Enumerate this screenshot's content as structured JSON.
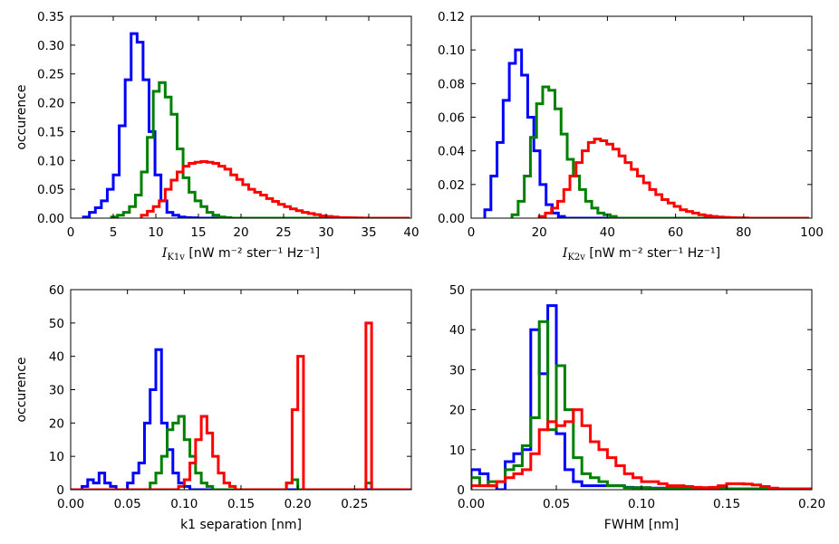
{
  "chart_data": [
    {
      "type": "step-histogram",
      "xlabel": {
        "symbol": "I",
        "subscript": "K1v",
        "unit": " [nW m⁻² ster⁻¹ Hz⁻¹]"
      },
      "ylabel": "occurence",
      "xlim": [
        0,
        40
      ],
      "ylim": [
        0,
        0.35
      ],
      "xticks": [
        0,
        5,
        10,
        15,
        20,
        25,
        30,
        35,
        40
      ],
      "yticks": [
        0.0,
        0.05,
        0.1,
        0.15,
        0.2,
        0.25,
        0.3,
        0.35
      ],
      "ytick_decimals": 2,
      "series": [
        {
          "name": "blue",
          "color": "#0000ff",
          "edges_start": 1.5,
          "bin_width": 0.7,
          "values": [
            0.002,
            0.01,
            0.018,
            0.03,
            0.05,
            0.075,
            0.16,
            0.24,
            0.32,
            0.305,
            0.24,
            0.15,
            0.075,
            0.03,
            0.01,
            0.005,
            0.002,
            0.001,
            0.0005,
            0.0,
            0.0,
            0.0,
            0.0,
            0.0,
            0.0,
            0.0,
            0.0,
            0.0,
            0.0,
            0.0,
            0.0,
            0.0,
            0.0,
            0.0,
            0.0,
            0.0,
            0.0,
            0.0,
            0.0,
            0.0,
            0.0,
            0.0,
            0.0,
            0.0,
            0.0,
            0.0,
            0.0,
            0.0,
            0.0,
            0.0,
            0.0,
            0.0,
            0.0
          ]
        },
        {
          "name": "green",
          "color": "#008000",
          "edges_start": 4.8,
          "bin_width": 0.7,
          "values": [
            0.002,
            0.005,
            0.01,
            0.02,
            0.04,
            0.08,
            0.14,
            0.22,
            0.235,
            0.21,
            0.18,
            0.12,
            0.07,
            0.045,
            0.03,
            0.02,
            0.01,
            0.005,
            0.002,
            0.001,
            0.0,
            0.0,
            0.0,
            0.0,
            0.0,
            0.0,
            0.0,
            0.0,
            0.0,
            0.0,
            0.0,
            0.0,
            0.0,
            0.0,
            0.0,
            0.0,
            0.0,
            0.0,
            0.0,
            0.0,
            0.0,
            0.0,
            0.0,
            0.0,
            0.0,
            0.0,
            0.0,
            0.0
          ]
        },
        {
          "name": "red",
          "color": "#ff0000",
          "edges_start": 8.3,
          "bin_width": 0.7,
          "values": [
            0.005,
            0.012,
            0.02,
            0.03,
            0.05,
            0.066,
            0.08,
            0.09,
            0.095,
            0.097,
            0.098,
            0.097,
            0.095,
            0.09,
            0.085,
            0.075,
            0.067,
            0.058,
            0.05,
            0.045,
            0.04,
            0.034,
            0.029,
            0.024,
            0.02,
            0.016,
            0.013,
            0.01,
            0.008,
            0.006,
            0.004,
            0.003,
            0.002,
            0.001,
            0.0008,
            0.0005,
            0.0003,
            0.0002,
            0.0001,
            0.0,
            0.0,
            0.0,
            0.0,
            0.0,
            0.0
          ]
        }
      ]
    },
    {
      "type": "step-histogram",
      "xlabel": {
        "symbol": "I",
        "subscript": "K2v",
        "unit": " [nW m⁻² ster⁻¹ Hz⁻¹]"
      },
      "ylabel": "",
      "xlim": [
        0,
        100
      ],
      "ylim": [
        0,
        0.12
      ],
      "xticks": [
        0,
        20,
        40,
        60,
        80,
        100
      ],
      "yticks": [
        0.0,
        0.02,
        0.04,
        0.06,
        0.08,
        0.1,
        0.12
      ],
      "ytick_decimals": 2,
      "series": [
        {
          "name": "blue",
          "color": "#0000ff",
          "edges_start": 4.0,
          "bin_width": 1.8,
          "values": [
            0.005,
            0.025,
            0.045,
            0.07,
            0.092,
            0.1,
            0.085,
            0.06,
            0.04,
            0.02,
            0.008,
            0.003,
            0.001,
            0.0,
            0.0,
            0.0,
            0.0,
            0.0,
            0.0,
            0.0,
            0.0,
            0.0,
            0.0,
            0.0,
            0.0,
            0.0,
            0.0,
            0.0,
            0.0,
            0.0,
            0.0,
            0.0,
            0.0,
            0.0,
            0.0,
            0.0,
            0.0,
            0.0,
            0.0,
            0.0,
            0.0,
            0.0,
            0.0,
            0.0,
            0.0,
            0.0,
            0.0,
            0.0,
            0.0,
            0.0,
            0.0,
            0.0
          ]
        },
        {
          "name": "green",
          "color": "#008000",
          "edges_start": 12.0,
          "bin_width": 1.8,
          "values": [
            0.002,
            0.01,
            0.025,
            0.048,
            0.068,
            0.078,
            0.076,
            0.065,
            0.05,
            0.035,
            0.025,
            0.017,
            0.01,
            0.006,
            0.003,
            0.002,
            0.001,
            0.0,
            0.0,
            0.0,
            0.0,
            0.0,
            0.0,
            0.0,
            0.0,
            0.0,
            0.0,
            0.0,
            0.0,
            0.0,
            0.0,
            0.0,
            0.0,
            0.0,
            0.0,
            0.0,
            0.0,
            0.0,
            0.0,
            0.0,
            0.0,
            0.0,
            0.0,
            0.0,
            0.0,
            0.0,
            0.0
          ]
        },
        {
          "name": "red",
          "color": "#ff0000",
          "edges_start": 20.0,
          "bin_width": 1.8,
          "values": [
            0.001,
            0.003,
            0.006,
            0.01,
            0.017,
            0.025,
            0.033,
            0.04,
            0.045,
            0.047,
            0.046,
            0.044,
            0.041,
            0.037,
            0.033,
            0.029,
            0.025,
            0.021,
            0.017,
            0.014,
            0.011,
            0.009,
            0.007,
            0.005,
            0.004,
            0.003,
            0.002,
            0.0015,
            0.001,
            0.0007,
            0.0005,
            0.0003,
            0.0002,
            0.0001,
            0.0,
            0.0,
            0.0,
            0.0,
            0.0,
            0.0,
            0.0,
            0.0,
            0.0,
            0.0
          ]
        }
      ]
    },
    {
      "type": "step-histogram",
      "xlabel": {
        "symbol": "",
        "subscript": "",
        "unit": "k1 separation [nm]"
      },
      "ylabel": "occurence",
      "xlim": [
        0.0,
        0.3
      ],
      "ylim": [
        0,
        60
      ],
      "xticks": [
        0.0,
        0.05,
        0.1,
        0.15,
        0.2,
        0.25
      ],
      "xtick_decimals": 2,
      "yticks": [
        0,
        10,
        20,
        30,
        40,
        50,
        60
      ],
      "ytick_decimals": 0,
      "series": [
        {
          "name": "blue",
          "color": "#0000ff",
          "edges_start": 0.0,
          "bin_width": 0.005,
          "values": [
            0,
            0,
            1,
            3,
            2,
            5,
            2,
            1,
            0,
            0,
            2,
            5,
            8,
            20,
            30,
            42,
            20,
            12,
            5,
            2,
            1,
            0,
            0,
            0,
            0,
            0,
            0,
            0,
            0,
            0,
            0,
            0,
            0,
            0,
            0,
            0,
            0,
            0,
            0,
            0,
            0,
            0,
            0,
            0,
            0,
            0,
            0,
            0,
            0,
            0,
            0,
            0,
            0,
            0,
            0,
            0,
            0,
            0,
            0,
            0
          ]
        },
        {
          "name": "green",
          "color": "#008000",
          "edges_start": 0.0,
          "bin_width": 0.005,
          "values": [
            0,
            0,
            0,
            0,
            0,
            0,
            0,
            0,
            0,
            0,
            0,
            0,
            0,
            0,
            2,
            5,
            10,
            18,
            20,
            22,
            15,
            10,
            5,
            2,
            1,
            0,
            0,
            0,
            0,
            0,
            0,
            0,
            0,
            0,
            0,
            0,
            0,
            0,
            2,
            3,
            0,
            0,
            0,
            0,
            0,
            0,
            0,
            0,
            0,
            0,
            0,
            0,
            2,
            0,
            0,
            0,
            0,
            0,
            0,
            0
          ]
        },
        {
          "name": "red",
          "color": "#ff0000",
          "edges_start": 0.0,
          "bin_width": 0.005,
          "values": [
            0,
            0,
            0,
            0,
            0,
            0,
            0,
            0,
            0,
            0,
            0,
            0,
            0,
            0,
            0,
            0,
            0,
            0,
            0,
            1,
            3,
            8,
            15,
            22,
            17,
            10,
            5,
            2,
            1,
            0,
            0,
            0,
            0,
            0,
            0,
            0,
            0,
            0,
            2,
            24,
            40,
            0,
            0,
            0,
            0,
            0,
            0,
            0,
            0,
            0,
            0,
            0,
            50,
            0,
            0,
            0,
            0,
            0,
            0,
            0
          ]
        }
      ]
    },
    {
      "type": "step-histogram",
      "xlabel": {
        "symbol": "",
        "subscript": "",
        "unit": "FWHM [nm]"
      },
      "ylabel": "",
      "xlim": [
        0.0,
        0.2
      ],
      "ylim": [
        0,
        50
      ],
      "xticks": [
        0.0,
        0.05,
        0.1,
        0.15,
        0.2
      ],
      "xtick_decimals": 2,
      "yticks": [
        0,
        10,
        20,
        30,
        40,
        50
      ],
      "ytick_decimals": 0,
      "series": [
        {
          "name": "blue",
          "color": "#0000ff",
          "edges_start": 0.0,
          "bin_width": 0.005,
          "values": [
            5,
            4,
            1,
            0,
            7,
            9,
            10,
            40,
            29,
            46,
            14,
            5,
            2,
            1,
            1,
            1,
            1,
            1,
            0.6,
            0.5,
            0.5,
            0.4,
            0.4,
            0.3,
            0.3,
            0.3,
            0.3,
            0.3,
            0.3,
            0.3,
            0.2,
            0.2,
            0.2,
            0.2,
            0.2,
            0.2,
            0.2,
            0.2,
            0.2,
            0.2
          ]
        },
        {
          "name": "green",
          "color": "#008000",
          "edges_start": 0.0,
          "bin_width": 0.005,
          "values": [
            3,
            1,
            2,
            2,
            5,
            6,
            11,
            18,
            42,
            15,
            31,
            20,
            8,
            4,
            3,
            2,
            1,
            1,
            0.5,
            0.5,
            0.5,
            0.3,
            0.3,
            0.3,
            0.3,
            0.3,
            0.3,
            0.3,
            0.2,
            0.2,
            0.2,
            0.2,
            0.2,
            0.2,
            0.2,
            0.2,
            0.2,
            0.2,
            0.2,
            0.2
          ]
        },
        {
          "name": "red",
          "color": "#ff0000",
          "edges_start": 0.0,
          "bin_width": 0.005,
          "values": [
            1,
            1,
            1,
            2,
            3,
            4,
            5,
            9,
            15,
            17,
            16,
            17,
            20,
            16,
            12,
            10,
            8,
            6,
            4,
            3,
            2,
            2,
            1.5,
            1,
            1,
            0.8,
            0.6,
            0.5,
            0.6,
            1.0,
            1.5,
            1.5,
            1.4,
            1.2,
            0.8,
            0.4,
            0.2,
            0.1,
            0.1,
            0.1
          ]
        }
      ]
    }
  ]
}
